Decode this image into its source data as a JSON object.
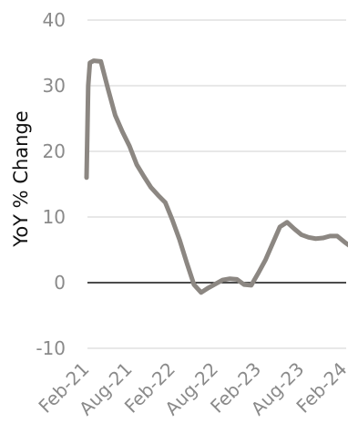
{
  "chart_data": {
    "type": "line",
    "title": "",
    "xlabel": "",
    "ylabel": "YoY % Change",
    "ylim": [
      -10,
      40
    ],
    "yticks": [
      -10,
      0,
      10,
      20,
      30,
      40
    ],
    "xticks": [
      "Feb-21",
      "Aug-21",
      "Feb-22",
      "Aug-22",
      "Feb-23",
      "Aug-23",
      "Feb-24"
    ],
    "grid": true,
    "line_color": "#8c8782",
    "series": [
      {
        "values": [
          {
            "x": "2021-02-01",
            "y": 16
          },
          {
            "x": "2021-02-08",
            "y": 30
          },
          {
            "x": "2021-02-15",
            "y": 33.5
          },
          {
            "x": "2021-03-01",
            "y": 33.8
          },
          {
            "x": "2021-04-01",
            "y": 33.7
          },
          {
            "x": "2021-05-01",
            "y": 29.5
          },
          {
            "x": "2021-06-01",
            "y": 25.5
          },
          {
            "x": "2021-07-01",
            "y": 23
          },
          {
            "x": "2021-08-01",
            "y": 20.8
          },
          {
            "x": "2021-09-01",
            "y": 18
          },
          {
            "x": "2021-10-01",
            "y": 16.2
          },
          {
            "x": "2021-11-01",
            "y": 14.5
          },
          {
            "x": "2021-12-01",
            "y": 13.3
          },
          {
            "x": "2022-01-01",
            "y": 12.2
          },
          {
            "x": "2022-02-01",
            "y": 9.5
          },
          {
            "x": "2022-03-01",
            "y": 6.5
          },
          {
            "x": "2022-04-01",
            "y": 3
          },
          {
            "x": "2022-05-01",
            "y": -0.3
          },
          {
            "x": "2022-06-01",
            "y": -1.5
          },
          {
            "x": "2022-07-01",
            "y": -0.8
          },
          {
            "x": "2022-08-01",
            "y": -0.2
          },
          {
            "x": "2022-09-01",
            "y": 0.4
          },
          {
            "x": "2022-10-01",
            "y": 0.6
          },
          {
            "x": "2022-11-01",
            "y": 0.5
          },
          {
            "x": "2022-12-01",
            "y": -0.3
          },
          {
            "x": "2023-01-01",
            "y": -0.4
          },
          {
            "x": "2023-02-01",
            "y": 1.5
          },
          {
            "x": "2023-03-01",
            "y": 3.5
          },
          {
            "x": "2023-04-01",
            "y": 6
          },
          {
            "x": "2023-05-01",
            "y": 8.5
          },
          {
            "x": "2023-06-01",
            "y": 9.2
          },
          {
            "x": "2023-07-01",
            "y": 8.2
          },
          {
            "x": "2023-08-01",
            "y": 7.3
          },
          {
            "x": "2023-09-01",
            "y": 6.9
          },
          {
            "x": "2023-10-01",
            "y": 6.7
          },
          {
            "x": "2023-11-01",
            "y": 6.8
          },
          {
            "x": "2023-12-01",
            "y": 7.1
          },
          {
            "x": "2024-01-01",
            "y": 7.1
          },
          {
            "x": "2024-02-01",
            "y": 6.2
          },
          {
            "x": "2024-03-01",
            "y": 5.4
          }
        ]
      }
    ]
  }
}
